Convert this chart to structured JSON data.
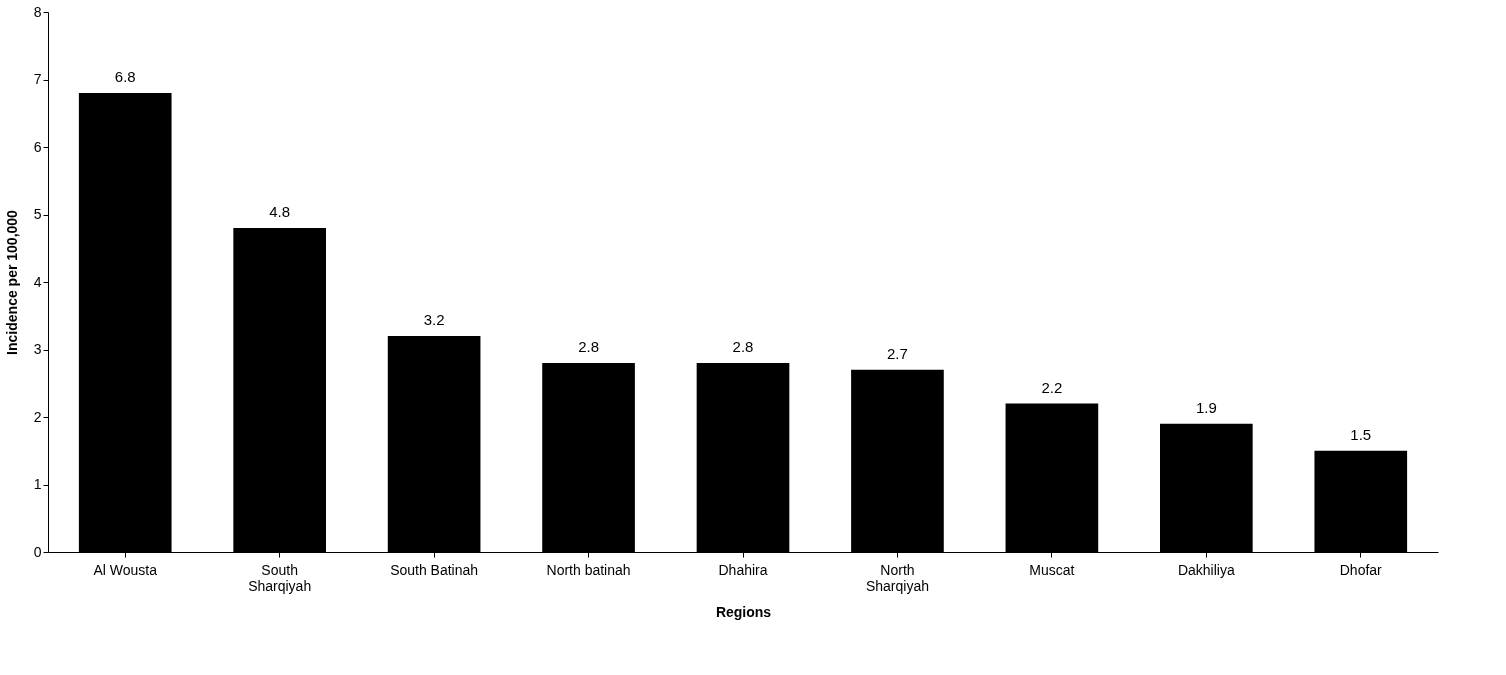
{
  "chart_data": {
    "type": "bar",
    "xlabel": "Regions",
    "ylabel": "Incidence per 100,000",
    "categories": [
      "Al Wousta",
      "South Sharqiyah",
      "South Batinah",
      "North batinah",
      "Dhahira",
      "North Sharqiyah",
      "Muscat",
      "Dakhiliya",
      "Dhofar"
    ],
    "values": [
      6.8,
      4.8,
      3.2,
      2.8,
      2.8,
      2.7,
      2.2,
      1.9,
      1.5
    ],
    "color": "#000000",
    "ylim": [
      0,
      8
    ],
    "yticks": [
      0,
      1,
      2,
      3,
      4,
      5,
      6,
      7,
      8
    ],
    "grid": false,
    "data_labels": true
  }
}
